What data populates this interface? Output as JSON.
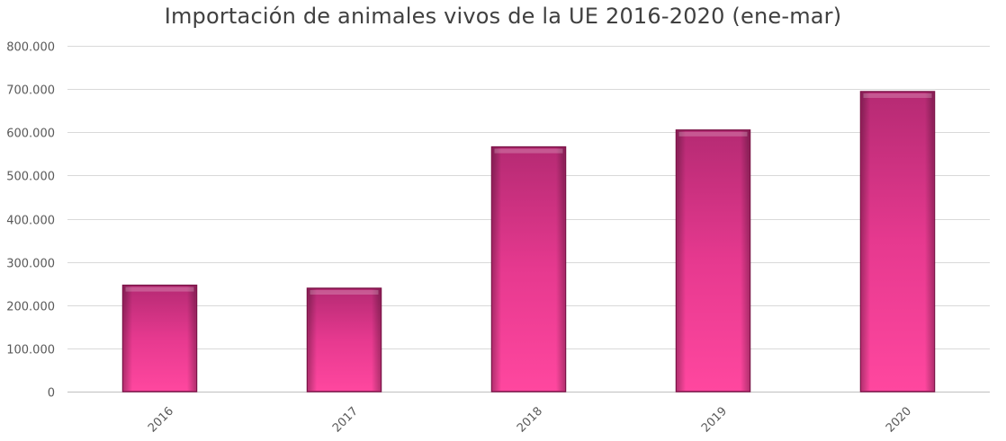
{
  "chart_data": {
    "type": "bar",
    "title": "Importación de animales vivos de la UE  2016-2020 (ene-mar)",
    "xlabel": "",
    "ylabel": "",
    "categories": [
      "2016",
      "2017",
      "2018",
      "2019",
      "2020"
    ],
    "values": [
      246000,
      239000,
      566000,
      605000,
      694000
    ],
    "ylim": [
      0,
      800000
    ],
    "yticks": [
      0,
      100000,
      200000,
      300000,
      400000,
      500000,
      600000,
      700000,
      800000
    ],
    "ytick_labels": [
      "0",
      "100.000",
      "200.000",
      "300.000",
      "400.000",
      "500.000",
      "600.000",
      "700.000",
      "800.000"
    ],
    "grid": true,
    "legend": "none",
    "colors": {
      "bar_top": "#b52a73",
      "bar_mid": "#e6398f",
      "bar_bottom": "#ff479f",
      "bar_edge": "#7c1448",
      "grid": "#d9d9d9",
      "axis": "#bfbfbf",
      "tick_text": "#595959",
      "title_text": "#404040"
    }
  }
}
